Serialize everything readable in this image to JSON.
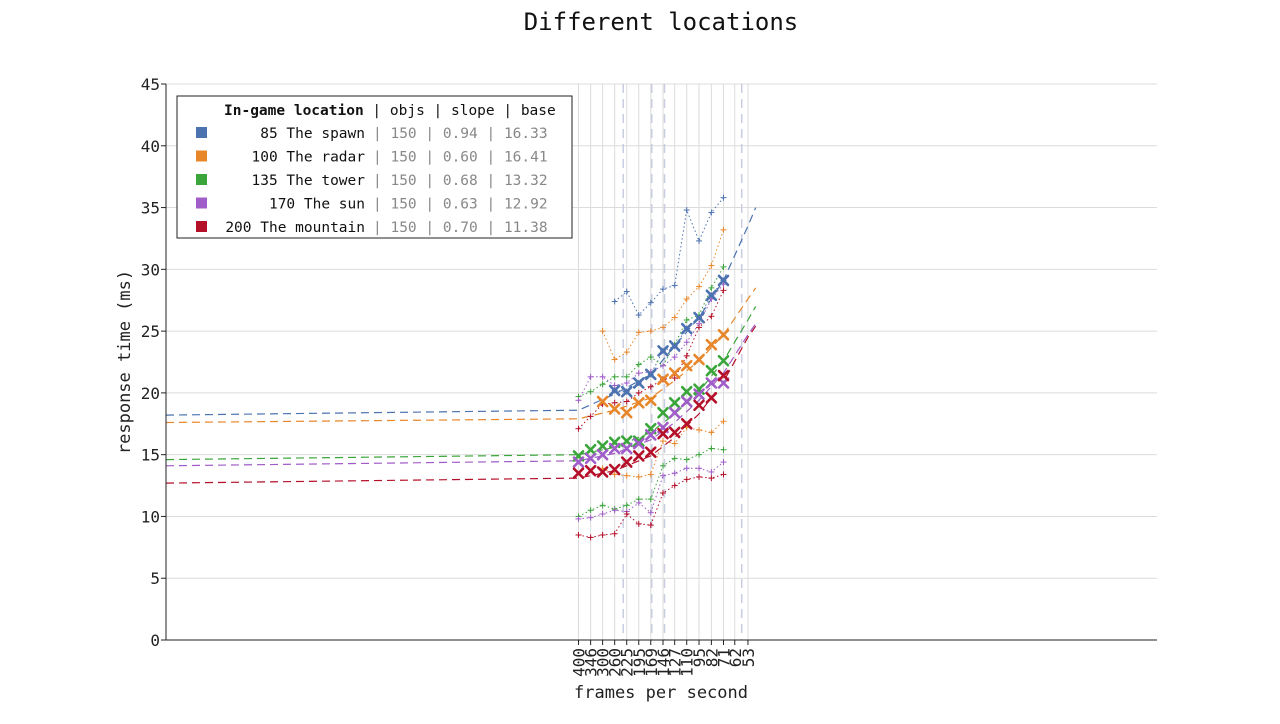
{
  "chart_data": {
    "type": "line",
    "title": "Different locations",
    "xlabel": "frames per second",
    "ylabel": "response time (ms)",
    "xlim": [
      1.925,
      18.975
    ],
    "ylim": [
      0,
      45
    ],
    "y_ticks": [
      0,
      5,
      10,
      15,
      20,
      25,
      30,
      35,
      40,
      45
    ],
    "x_tick_labels": [
      "400",
      "346",
      "300",
      "260",
      "225",
      "195",
      "169",
      "146",
      "127",
      "110",
      "95",
      "82",
      "71",
      "62",
      "53"
    ],
    "x_ticks": [
      519.75,
      600.75,
      693.0,
      800.25,
      924.0,
      1066.5,
      1230.75,
      1424.25,
      1637.25,
      1890.0,
      2188.5,
      2535.75,
      2929.5,
      3351.75,
      3921.75
    ],
    "vertical_markers": [
      886.0,
      1245.0,
      1450.0,
      3640.0
    ],
    "grid": true,
    "legend_placement": "top-left",
    "legend_columns": [
      "In-game location",
      "objs",
      "slope",
      "base"
    ],
    "series": [
      {
        "name": "85 The spawn",
        "label_number": "85",
        "label_name": "The spawn",
        "objs": "150",
        "slope": "0.94",
        "base": "16.33",
        "color": "#4c72b0",
        "x_points": [
          519.75,
          600.75,
          693.0,
          800.25,
          924.0,
          1066.5,
          1230.75,
          1424.25,
          1637.25,
          1890.0,
          2188.5,
          2535.75,
          2929.5
        ],
        "mean": [
          null,
          null,
          null,
          20.2,
          20.1,
          20.8,
          21.5,
          23.4,
          23.8,
          25.2,
          26.1,
          27.9,
          29.1
        ],
        "upper": [
          null,
          null,
          null,
          27.4,
          28.2,
          26.3,
          27.3,
          28.4,
          28.7,
          34.8,
          32.3,
          34.6,
          35.8
        ],
        "lower": [
          null,
          null,
          null,
          20.2,
          20.1,
          20.8,
          21.5,
          23.4,
          23.8,
          25.2,
          26.1,
          27.9,
          29.1
        ],
        "trend": [
          [
            0,
            18.2
          ],
          [
            519.75,
            18.6
          ],
          [
            800.25,
            19.9
          ],
          [
            1230.75,
            21.5
          ],
          [
            1637.25,
            23.8
          ],
          [
            2188.5,
            26.1
          ],
          [
            2929.5,
            29.1
          ],
          [
            3921.75,
            33.5
          ],
          [
            4300,
            35.0
          ]
        ]
      },
      {
        "name": "100 The radar",
        "label_number": "100",
        "label_name": "The radar",
        "objs": "150",
        "slope": "0.60",
        "base": "16.41",
        "color": "#e8862a",
        "x_points": [
          519.75,
          600.75,
          693.0,
          800.25,
          924.0,
          1066.5,
          1230.75,
          1424.25,
          1637.25,
          1890.0,
          2188.5,
          2535.75,
          2929.5
        ],
        "mean": [
          null,
          null,
          19.3,
          18.7,
          18.4,
          19.2,
          19.4,
          21.1,
          21.6,
          22.2,
          22.7,
          23.9,
          24.7
        ],
        "upper": [
          null,
          null,
          25.0,
          22.7,
          23.3,
          24.9,
          25.0,
          25.3,
          26.1,
          27.6,
          28.6,
          30.3,
          33.2
        ],
        "lower": [
          null,
          null,
          13.9,
          13.4,
          13.3,
          13.2,
          13.4,
          16.1,
          15.9,
          17.2,
          17.0,
          16.8,
          17.7
        ],
        "trend": [
          [
            0,
            17.6
          ],
          [
            519.75,
            17.9
          ],
          [
            800.25,
            18.6
          ],
          [
            1230.75,
            19.6
          ],
          [
            1637.25,
            21.0
          ],
          [
            2188.5,
            22.6
          ],
          [
            2929.5,
            24.7
          ],
          [
            3921.75,
            27.6
          ],
          [
            4300,
            28.5
          ]
        ]
      },
      {
        "name": "135 The tower",
        "label_number": "135",
        "label_name": "The tower",
        "objs": "150",
        "slope": "0.68",
        "base": "13.32",
        "color": "#3aa53a",
        "x_points": [
          519.75,
          600.75,
          693.0,
          800.25,
          924.0,
          1066.5,
          1230.75,
          1424.25,
          1637.25,
          1890.0,
          2188.5,
          2535.75,
          2929.5
        ],
        "mean": [
          14.9,
          15.4,
          15.7,
          16.0,
          16.1,
          16.1,
          17.1,
          18.4,
          19.2,
          20.1,
          20.3,
          21.8,
          22.6
        ],
        "upper": [
          19.7,
          20.1,
          20.7,
          21.3,
          21.3,
          22.3,
          22.9,
          22.2,
          23.9,
          25.9,
          26.3,
          28.5,
          30.2
        ],
        "lower": [
          10.0,
          10.5,
          10.9,
          10.6,
          10.9,
          11.4,
          11.4,
          14.1,
          14.7,
          14.6,
          15.0,
          15.5,
          15.4
        ],
        "trend": [
          [
            0,
            14.6
          ],
          [
            519.75,
            15.0
          ],
          [
            800.25,
            15.6
          ],
          [
            1230.75,
            16.8
          ],
          [
            1637.25,
            18.3
          ],
          [
            2188.5,
            20.1
          ],
          [
            2929.5,
            22.6
          ],
          [
            3921.75,
            25.9
          ],
          [
            4300,
            27.0
          ]
        ]
      },
      {
        "name": "170 The sun",
        "label_number": "170",
        "label_name": "The sun",
        "objs": "150",
        "slope": "0.63",
        "base": "12.92",
        "color": "#a05cc8",
        "x_points": [
          519.75,
          600.75,
          693.0,
          800.25,
          924.0,
          1066.5,
          1230.75,
          1424.25,
          1637.25,
          1890.0,
          2188.5,
          2535.75,
          2929.5
        ],
        "mean": [
          14.4,
          14.7,
          15.0,
          15.5,
          15.5,
          15.9,
          16.6,
          17.2,
          18.4,
          19.3,
          19.9,
          20.8,
          20.8
        ],
        "upper": [
          19.4,
          21.3,
          21.3,
          20.6,
          20.8,
          21.6,
          21.7,
          22.2,
          22.9,
          24.1,
          25.6,
          27.6,
          28.8
        ],
        "lower": [
          9.8,
          9.9,
          10.2,
          10.5,
          10.4,
          11.1,
          10.3,
          13.3,
          13.5,
          13.9,
          13.9,
          13.6,
          14.4
        ],
        "trend": [
          [
            0,
            14.1
          ],
          [
            519.75,
            14.5
          ],
          [
            800.25,
            15.1
          ],
          [
            1230.75,
            16.2
          ],
          [
            1637.25,
            17.6
          ],
          [
            2188.5,
            19.4
          ],
          [
            2929.5,
            21.6
          ],
          [
            3921.75,
            24.7
          ],
          [
            4300,
            25.6
          ]
        ]
      },
      {
        "name": "200 The mountain",
        "label_number": "200",
        "label_name": "The mountain",
        "objs": "150",
        "slope": "0.70",
        "base": "11.38",
        "color": "#b5102a",
        "x_points": [
          519.75,
          600.75,
          693.0,
          800.25,
          924.0,
          1066.5,
          1230.75,
          1424.25,
          1637.25,
          1890.0,
          2188.5,
          2535.75,
          2929.5
        ],
        "mean": [
          13.5,
          13.7,
          13.6,
          13.8,
          14.4,
          14.9,
          15.2,
          16.7,
          16.8,
          17.5,
          19.0,
          19.6,
          21.4
        ],
        "upper": [
          17.1,
          18.1,
          19.1,
          19.2,
          19.3,
          20.0,
          20.5,
          21.1,
          21.2,
          23.0,
          25.3,
          26.2,
          28.3
        ],
        "lower": [
          8.5,
          8.3,
          8.5,
          8.6,
          10.2,
          9.4,
          9.3,
          11.9,
          12.5,
          13.0,
          13.2,
          13.1,
          13.4
        ],
        "trend": [
          [
            0,
            12.7
          ],
          [
            519.75,
            13.1
          ],
          [
            800.25,
            13.7
          ],
          [
            1230.75,
            14.9
          ],
          [
            1637.25,
            16.4
          ],
          [
            2188.5,
            18.3
          ],
          [
            2929.5,
            20.9
          ],
          [
            3921.75,
            24.5
          ],
          [
            4300,
            25.4
          ]
        ]
      }
    ]
  }
}
